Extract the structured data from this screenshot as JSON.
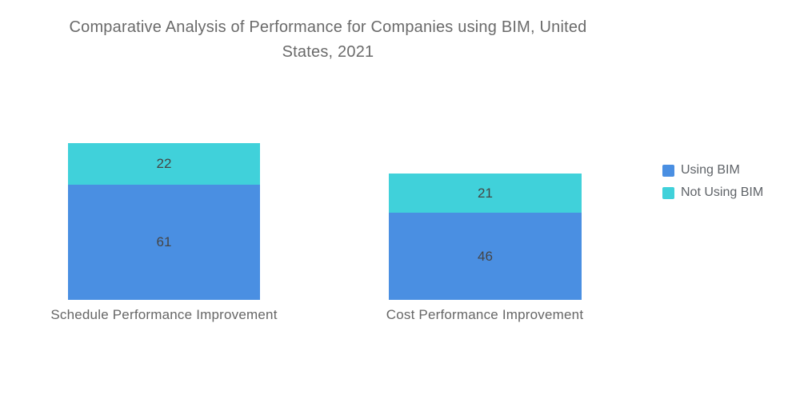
{
  "header": {
    "line1": "Comparative Analysis of Performance for Companies using BIM, United",
    "line2": "States, 2021"
  },
  "chart_data": {
    "type": "bar",
    "subtype": "stacked-column",
    "title": "Comparative Analysis of Performance for Companies using BIM, United States, 2021",
    "categories": [
      "Schedule Performance Improvement",
      "Cost Performance Improvement"
    ],
    "series": [
      {
        "name": "Using BIM",
        "color": "#4a8fe2",
        "values": [
          61,
          46
        ]
      },
      {
        "name": "Not Using BIM",
        "color": "#40d1da",
        "values": [
          22,
          21
        ]
      }
    ],
    "stack_totals": [
      83,
      67
    ],
    "legend_position": "right",
    "grid": false,
    "axes_visible": false,
    "value_labels_visible": true
  },
  "colors": {
    "background": "#ffffff",
    "title_text": "#6a6a6a",
    "axis_label_text": "#666666",
    "value_label_text": "#454545",
    "legend_text": "#5f6368"
  }
}
